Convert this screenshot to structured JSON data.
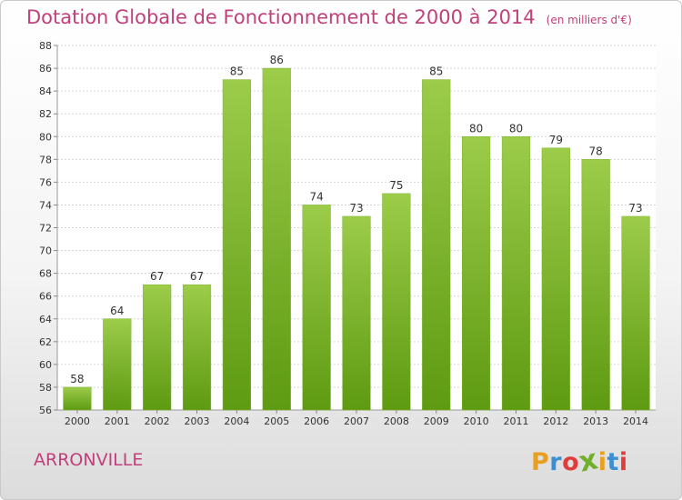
{
  "header": {
    "title": "Dotation Globale de Fonctionnement de 2000 à 2014",
    "subtitle": "(en milliers d'€)"
  },
  "footer": {
    "place": "ARRONVILLE",
    "logo_letters": [
      "P",
      "r",
      "o",
      "x",
      "i",
      "t",
      "i"
    ],
    "logo_colors": [
      "#e8a020",
      "#3d8fd0",
      "#e03c3c",
      "#70b02c",
      "#e8a020",
      "#3d8fd0",
      "#e03c3c"
    ]
  },
  "chart_data": {
    "type": "bar",
    "title": "Dotation Globale de Fonctionnement de 2000 à 2014",
    "subtitle": "(en milliers d'€)",
    "categories": [
      "2000",
      "2001",
      "2002",
      "2003",
      "2004",
      "2005",
      "2006",
      "2007",
      "2008",
      "2009",
      "2010",
      "2011",
      "2012",
      "2013",
      "2014"
    ],
    "values": [
      58,
      64,
      67,
      67,
      85,
      86,
      74,
      73,
      75,
      85,
      80,
      80,
      79,
      78,
      73
    ],
    "ylim": [
      56,
      88
    ],
    "yticks": [
      56,
      58,
      60,
      62,
      64,
      66,
      68,
      70,
      72,
      74,
      76,
      78,
      80,
      82,
      84,
      86,
      88
    ],
    "grid": true,
    "bar_color_top": "#9ccc4a",
    "bar_color_bottom": "#5e9a12"
  }
}
